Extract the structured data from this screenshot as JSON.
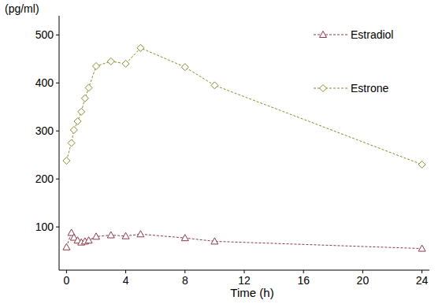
{
  "chart_data": {
    "type": "line",
    "x_label": "Time (h)",
    "y_label": "(pg/ml)",
    "xlim": [
      -0.5,
      24.5
    ],
    "ylim": [
      10,
      540
    ],
    "xticks": [
      0,
      4,
      8,
      12,
      16,
      20,
      24
    ],
    "yticks": [
      100,
      200,
      300,
      400,
      500
    ],
    "grid": false,
    "legend": "top-right",
    "series": [
      {
        "name": "Estradiol",
        "color": "#8b3a4a",
        "marker": "triangle",
        "line_style": "dashed",
        "x": [
          0,
          0.33,
          0.5,
          0.75,
          1,
          1.25,
          1.5,
          2,
          3,
          4,
          5,
          8,
          10,
          24
        ],
        "values": [
          58,
          88,
          78,
          72,
          68,
          70,
          72,
          80,
          83,
          81,
          85,
          77,
          70,
          55
        ]
      },
      {
        "name": "Estrone",
        "color": "#8a8a2a",
        "marker": "diamond",
        "line_style": "dashed",
        "x": [
          0,
          0.33,
          0.5,
          0.75,
          1,
          1.25,
          1.5,
          2,
          3,
          4,
          5,
          8,
          10,
          24
        ],
        "values": [
          238,
          275,
          302,
          320,
          340,
          368,
          390,
          435,
          445,
          440,
          473,
          433,
          395,
          230
        ]
      }
    ]
  }
}
